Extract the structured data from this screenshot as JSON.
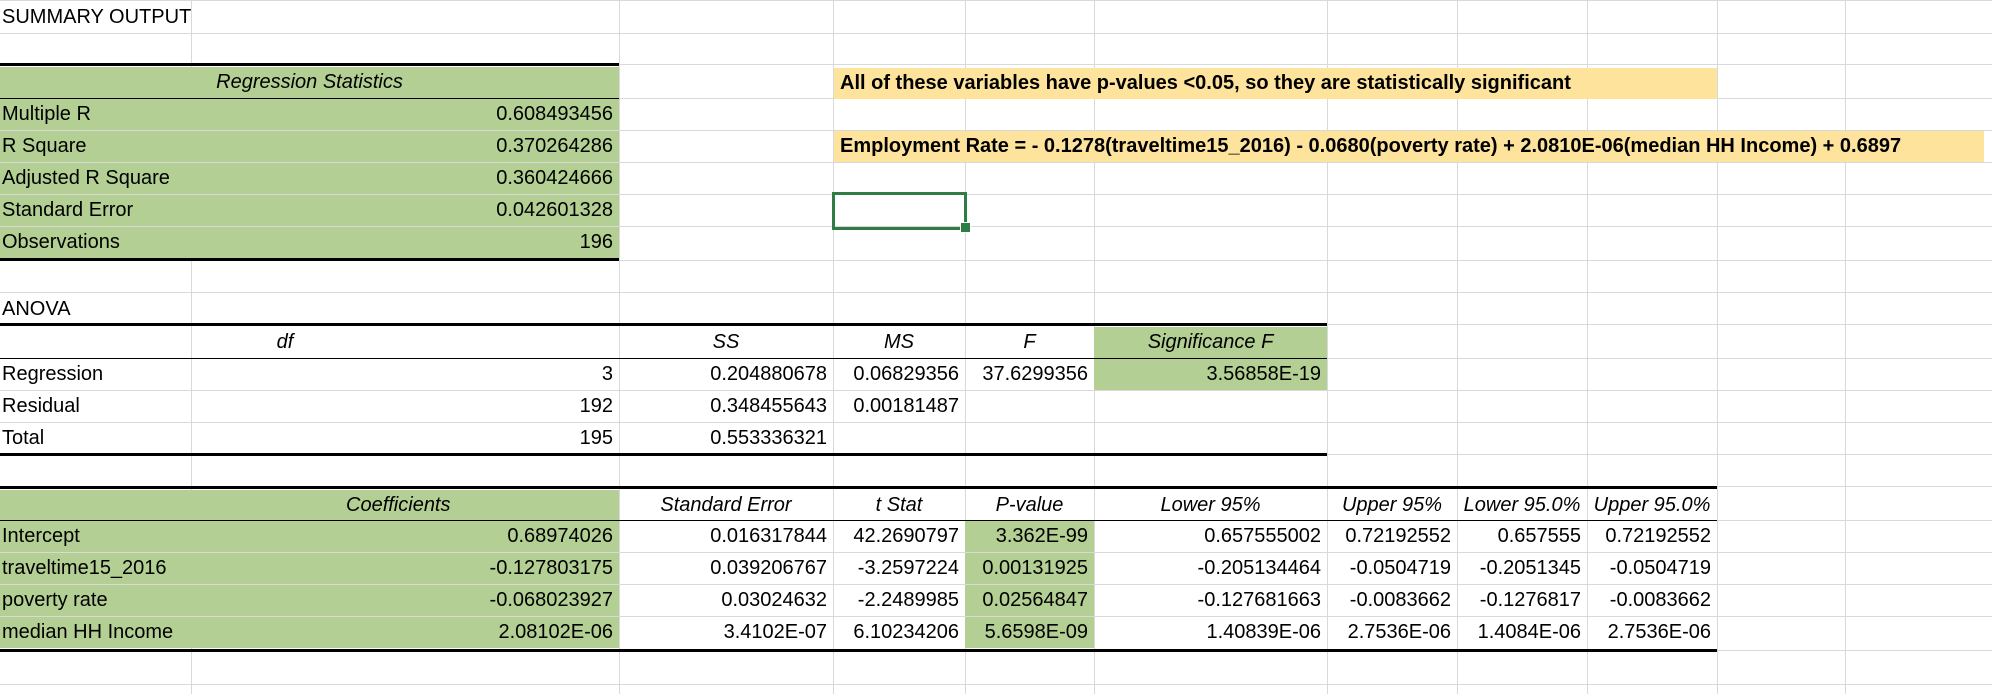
{
  "title": "SUMMARY OUTPUT",
  "regression_statistics": {
    "header": "Regression Statistics",
    "rows": [
      {
        "label": "Multiple R",
        "value": "0.608493456"
      },
      {
        "label": "R Square",
        "value": "0.370264286"
      },
      {
        "label": "Adjusted R Square",
        "value": "0.360424666"
      },
      {
        "label": "Standard Error",
        "value": "0.042601328"
      },
      {
        "label": "Observations",
        "value": "196"
      }
    ]
  },
  "notes": {
    "significance": "All of these variables have p-values <0.05, so they are statistically significant",
    "equation": "Employment Rate = - 0.1278(traveltime15_2016) - 0.0680(poverty rate) + 2.0810E-06(median HH Income) + 0.6897"
  },
  "anova": {
    "label": "ANOVA",
    "headers": [
      "df",
      "SS",
      "MS",
      "F",
      "Significance F"
    ],
    "rows": [
      {
        "label": "Regression",
        "df": "3",
        "ss": "0.204880678",
        "ms": "0.06829356",
        "f": "37.6299356",
        "sig_f": "3.56858E-19"
      },
      {
        "label": "Residual",
        "df": "192",
        "ss": "0.348455643",
        "ms": "0.00181487",
        "f": "",
        "sig_f": ""
      },
      {
        "label": "Total",
        "df": "195",
        "ss": "0.553336321",
        "ms": "",
        "f": "",
        "sig_f": ""
      }
    ]
  },
  "coefficients": {
    "headers": [
      "Coefficients",
      "Standard Error",
      "t Stat",
      "P-value",
      "Lower 95%",
      "Upper 95%",
      "Lower 95.0%",
      "Upper 95.0%"
    ],
    "rows": [
      {
        "label": "Intercept",
        "values": [
          "0.68974026",
          "0.016317844",
          "42.2690797",
          "3.362E-99",
          "0.657555002",
          "0.72192552",
          "0.657555",
          "0.72192552"
        ]
      },
      {
        "label": "traveltime15_2016",
        "values": [
          "-0.127803175",
          "0.039206767",
          "-3.2597224",
          "0.00131925",
          "-0.205134464",
          "-0.0504719",
          "-0.2051345",
          "-0.0504719"
        ]
      },
      {
        "label": "poverty rate",
        "values": [
          "-0.068023927",
          "0.03024632",
          "-2.2489985",
          "0.02564847",
          "-0.127681663",
          "-0.0083662",
          "-0.1276817",
          "-0.0083662"
        ]
      },
      {
        "label": "median HH Income",
        "values": [
          "2.08102E-06",
          "3.4102E-07",
          "6.10234206",
          "5.6598E-09",
          "1.40839E-06",
          "2.7536E-06",
          "1.4084E-06",
          "2.7536E-06"
        ]
      }
    ]
  },
  "colors": {
    "green": "#b3cf93",
    "yellow": "#fde39c",
    "selection": "#2f7d45"
  }
}
